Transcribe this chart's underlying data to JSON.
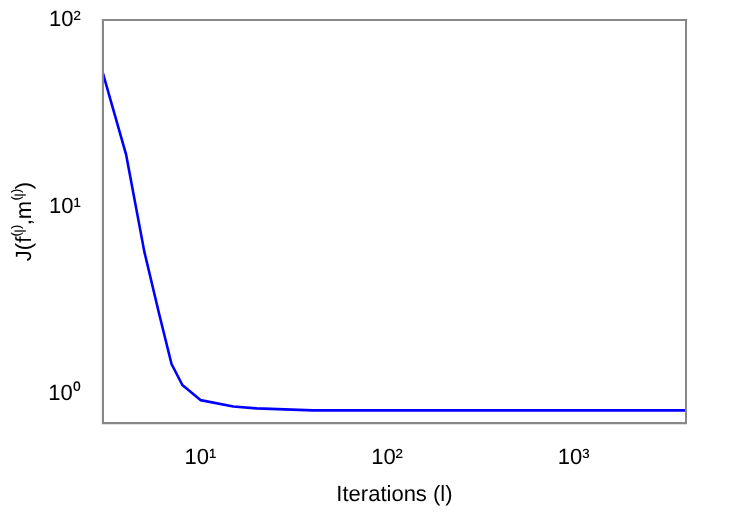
{
  "chart_data": {
    "type": "line",
    "xlabel": "Iterations (l)",
    "ylabel": "J(f⁽ˡ⁾,m⁽ˡ⁾)",
    "log": "xy",
    "xlim": [
      3,
      4000
    ],
    "ylim": [
      0.7,
      100
    ],
    "xticks": [
      {
        "value": 10,
        "label": "10¹"
      },
      {
        "value": 100,
        "label": "10²"
      },
      {
        "value": 1000,
        "label": "10³"
      }
    ],
    "yticks": [
      {
        "value": 1,
        "label": "10⁰"
      },
      {
        "value": 10,
        "label": "10¹"
      },
      {
        "value": 100,
        "label": "10²"
      }
    ],
    "grid": false,
    "legend": false,
    "series": [
      {
        "color": "#0000ff",
        "x": [
          3,
          4,
          5,
          6,
          7,
          8,
          10,
          15,
          20,
          40,
          100,
          1000,
          4000
        ],
        "values": [
          52,
          19,
          5.8,
          2.7,
          1.45,
          1.12,
          0.93,
          0.86,
          0.84,
          0.82,
          0.82,
          0.82,
          0.82
        ]
      }
    ]
  }
}
